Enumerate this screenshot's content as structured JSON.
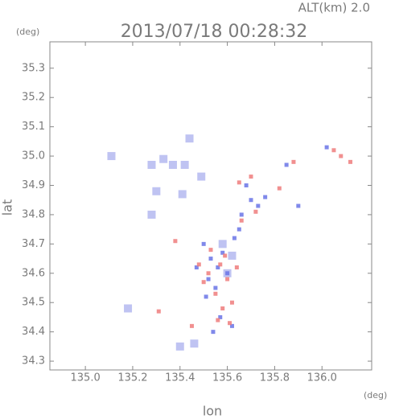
{
  "chart_data": {
    "type": "scatter",
    "title": "2013/07/18 00:28:32",
    "alt_label": "ALT(km) 2.0",
    "y_unit": "(deg)",
    "x_unit": "(deg)",
    "xlabel": "lon",
    "ylabel": "lat",
    "xlim": [
      134.85,
      136.21
    ],
    "ylim": [
      34.27,
      35.39
    ],
    "xticks": [
      {
        "value": 135,
        "label": "135.0"
      },
      135.2,
      135.4,
      135.6,
      135.8,
      {
        "value": 136,
        "label": "136.0"
      }
    ],
    "yticks": [
      34.3,
      34.4,
      34.5,
      34.6,
      34.7,
      34.8,
      34.9,
      {
        "value": 35,
        "label": "35.0"
      },
      35.1,
      35.2,
      35.3
    ],
    "series": [
      {
        "color": "#b4b8f0",
        "x": [
          135.11,
          135.28,
          135.33,
          135.37,
          135.42,
          135.49,
          135.44,
          135.3,
          135.41,
          135.28,
          135.18,
          135.58,
          135.62,
          135.6,
          135.4,
          135.46
        ],
        "values": [
          35.0,
          34.97,
          34.99,
          34.97,
          34.97,
          34.93,
          35.06,
          34.88,
          34.87,
          34.8,
          34.48,
          34.7,
          34.66,
          34.6,
          34.35,
          34.36
        ]
      },
      {
        "color": "#6a74e6",
        "x": [
          135.5,
          135.53,
          135.56,
          135.6,
          135.52,
          135.55,
          135.58,
          135.63,
          135.66,
          135.7,
          135.73,
          135.76,
          135.85,
          136.02,
          135.47,
          135.51,
          135.57,
          135.62,
          135.54,
          135.65,
          135.68,
          135.9
        ],
        "values": [
          34.7,
          34.65,
          34.62,
          34.6,
          34.58,
          34.55,
          34.67,
          34.72,
          34.8,
          34.85,
          34.83,
          34.86,
          34.97,
          35.03,
          34.62,
          34.52,
          34.45,
          34.42,
          34.4,
          34.75,
          34.9,
          34.83
        ]
      },
      {
        "color": "#ee7c7c",
        "x": [
          135.53,
          135.57,
          135.6,
          135.55,
          135.5,
          135.58,
          135.62,
          135.48,
          135.56,
          135.64,
          135.66,
          135.72,
          135.82,
          135.88,
          136.08,
          136.12,
          136.05,
          135.7,
          135.38,
          135.31,
          135.59,
          135.52,
          135.61,
          135.45,
          135.65
        ],
        "values": [
          34.68,
          34.63,
          34.58,
          34.53,
          34.57,
          34.48,
          34.5,
          34.63,
          34.44,
          34.62,
          34.78,
          34.81,
          34.89,
          34.98,
          35.0,
          34.98,
          35.02,
          34.93,
          34.71,
          34.47,
          34.66,
          34.6,
          34.43,
          34.42,
          34.91
        ]
      }
    ]
  }
}
